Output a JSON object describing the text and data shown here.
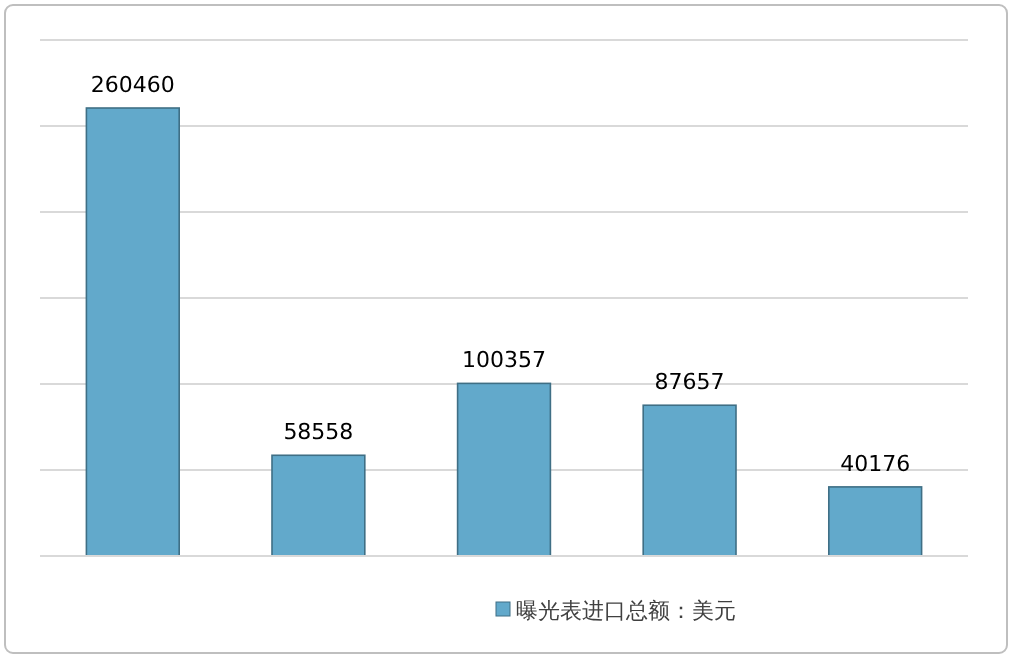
{
  "chart_data": {
    "type": "bar",
    "categories": [
      null,
      null,
      null,
      null,
      null
    ],
    "series": [
      {
        "name": "曝光表进口总额：美元",
        "color": "#62a9cb",
        "values": [
          260460,
          58558,
          100357,
          87657,
          40176
        ]
      }
    ],
    "ylim": [
      0,
      300000
    ],
    "yticks": [
      {
        "value": 0,
        "label": null
      },
      {
        "value": 50000,
        "label": null
      },
      {
        "value": 100000,
        "label": null
      },
      {
        "value": 150000,
        "label": null
      },
      {
        "value": 200000,
        "label": null
      },
      {
        "value": 250000,
        "label": null
      },
      {
        "value": 300000,
        "label": null
      }
    ],
    "grid": "y",
    "legend": "bottom",
    "data_labels": true
  }
}
